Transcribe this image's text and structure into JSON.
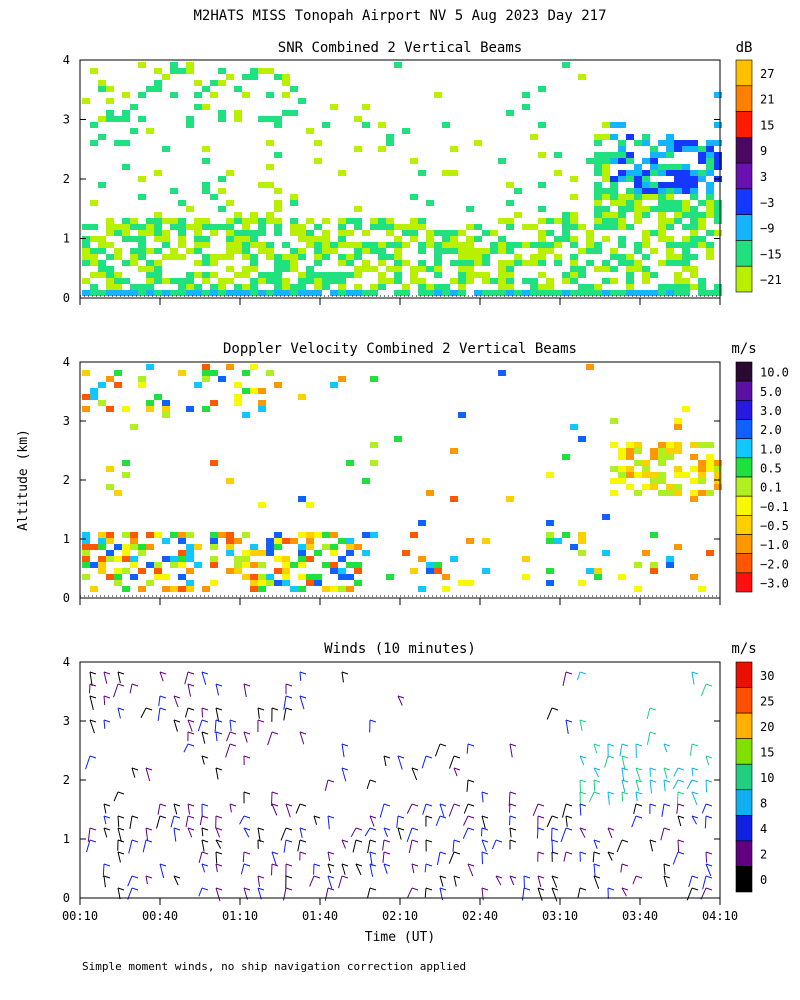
{
  "figure": {
    "title": "M2HATS MISS Tonopah Airport NV   5 Aug 2023 Day 217",
    "footnote": "Simple moment winds, no ship navigation correction applied",
    "ylabel": "Altitude (km)",
    "xlabel": "Time (UT)"
  },
  "chart_data": [
    {
      "type": "heatmap",
      "title": "SNR Combined 2 Vertical Beams",
      "x_ticks": [
        "00:10",
        "00:40",
        "01:10",
        "01:40",
        "02:10",
        "02:40",
        "03:10",
        "03:40",
        "04:10"
      ],
      "y_ticks": [
        "0",
        "1",
        "2",
        "3",
        "4"
      ],
      "ylim": [
        0,
        4
      ],
      "colorbar": {
        "unit": "dB",
        "labels": [
          "27",
          "21",
          "15",
          "9",
          "3",
          "−3",
          "−9",
          "−15",
          "−21"
        ],
        "colors": [
          "#ffc000",
          "#ff8000",
          "#ff1c00",
          "#4a0860",
          "#6a10b0",
          "#1438ff",
          "#14b4ff",
          "#20e080",
          "#b8f000"
        ]
      }
    },
    {
      "type": "heatmap",
      "title": "Doppler Velocity Combined 2 Vertical Beams",
      "x_ticks": [
        "00:10",
        "00:40",
        "01:10",
        "01:40",
        "02:10",
        "02:40",
        "03:10",
        "03:40",
        "04:10"
      ],
      "y_ticks": [
        "0",
        "1",
        "2",
        "3",
        "4"
      ],
      "ylim": [
        0,
        4
      ],
      "colorbar": {
        "unit": "m/s",
        "labels": [
          "10.0",
          "5.0",
          "3.0",
          "2.0",
          "1.0",
          "0.5",
          "0.1",
          "−0.1",
          "−0.5",
          "−1.0",
          "−2.0",
          "−3.0"
        ],
        "colors": [
          "#2a0a30",
          "#5a10a0",
          "#2818e0",
          "#1060ff",
          "#10c8ff",
          "#20e040",
          "#b0f020",
          "#f8f800",
          "#ffd000",
          "#ff9800",
          "#ff5800",
          "#ff1010"
        ]
      }
    },
    {
      "type": "scatter",
      "title": "Winds (10 minutes)",
      "x_ticks": [
        "00:10",
        "00:40",
        "01:10",
        "01:40",
        "02:10",
        "02:40",
        "03:10",
        "03:40",
        "04:10"
      ],
      "y_ticks": [
        "0",
        "1",
        "2",
        "3",
        "4"
      ],
      "ylim": [
        0,
        4
      ],
      "colorbar": {
        "unit": "m/s",
        "labels": [
          "30",
          "25",
          "20",
          "15",
          "10",
          "8",
          "4",
          "2",
          "0"
        ],
        "colors": [
          "#e81000",
          "#ff5000",
          "#ffb000",
          "#80e000",
          "#20d080",
          "#10b0f0",
          "#1020e0",
          "#600080",
          "#000000"
        ]
      }
    }
  ]
}
